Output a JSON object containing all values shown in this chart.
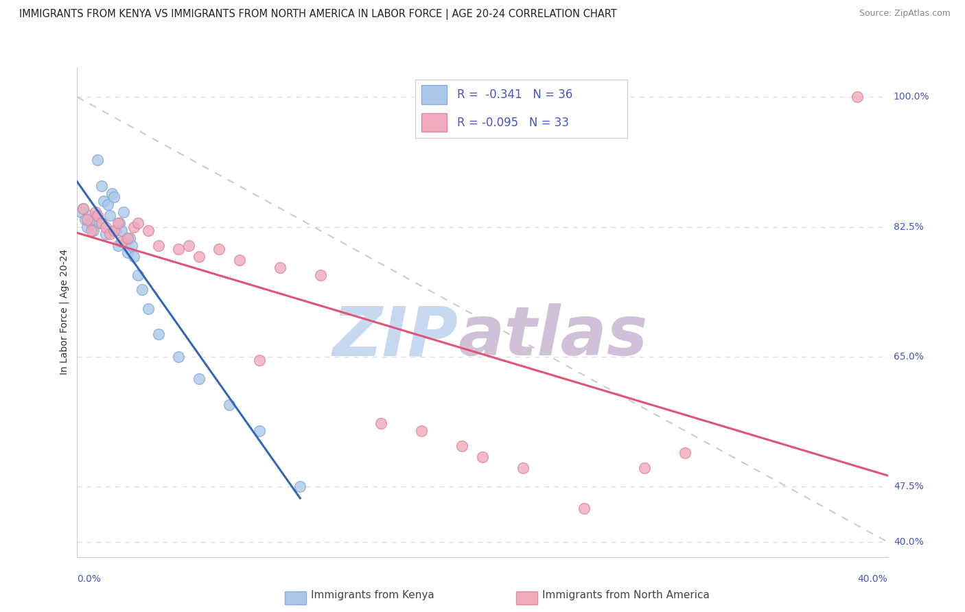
{
  "title": "IMMIGRANTS FROM KENYA VS IMMIGRANTS FROM NORTH AMERICA IN LABOR FORCE | AGE 20-24 CORRELATION CHART",
  "source": "Source: ZipAtlas.com",
  "xlabel_bottom_left": "0.0%",
  "xlabel_bottom_right": "40.0%",
  "ylabel": "In Labor Force | Age 20-24",
  "ylabel_color": "#333333",
  "y_tick_color": "#4455cc",
  "xlim": [
    0.0,
    40.0
  ],
  "ylim": [
    38.0,
    104.0
  ],
  "y_ticks": [
    40.0,
    47.5,
    65.0,
    82.5,
    100.0
  ],
  "kenya_R": -0.341,
  "kenya_N": 36,
  "kenya_color": "#aac8e8",
  "kenya_edge": "#88aadd",
  "kenya_line_color": "#3366bb",
  "northam_R": -0.095,
  "northam_N": 33,
  "northam_color": "#f0aabb",
  "northam_edge": "#dd8899",
  "northam_line_color": "#e05575",
  "legend_label_kenya": "Immigrants from Kenya",
  "legend_label_northam": "Immigrants from North America",
  "kenya_x": [
    0.2,
    0.3,
    0.4,
    0.5,
    0.6,
    0.7,
    0.8,
    0.9,
    1.0,
    1.1,
    1.2,
    1.3,
    1.4,
    1.5,
    1.6,
    1.7,
    1.8,
    1.9,
    2.0,
    2.1,
    2.2,
    2.3,
    2.4,
    2.5,
    2.6,
    2.7,
    2.8,
    3.0,
    3.2,
    3.5,
    4.0,
    5.0,
    6.0,
    7.5,
    9.0,
    11.0
  ],
  "kenya_y": [
    84.5,
    85.0,
    83.5,
    82.5,
    84.0,
    83.0,
    82.0,
    83.5,
    91.5,
    83.0,
    88.0,
    86.0,
    81.5,
    85.5,
    84.0,
    87.0,
    86.5,
    82.0,
    80.0,
    83.0,
    82.0,
    84.5,
    80.5,
    79.0,
    81.0,
    80.0,
    78.5,
    76.0,
    74.0,
    71.5,
    68.0,
    65.0,
    62.0,
    58.5,
    55.0,
    47.5
  ],
  "northam_x": [
    0.3,
    0.5,
    0.7,
    0.9,
    1.0,
    1.2,
    1.4,
    1.6,
    1.8,
    2.0,
    2.2,
    2.5,
    2.8,
    3.0,
    3.5,
    4.0,
    5.0,
    5.5,
    6.0,
    7.0,
    8.0,
    9.0,
    10.0,
    12.0,
    15.0,
    17.0,
    19.0,
    20.0,
    22.0,
    25.0,
    28.0,
    30.0,
    38.5
  ],
  "northam_y": [
    85.0,
    83.5,
    82.0,
    84.5,
    84.0,
    83.0,
    82.5,
    81.5,
    82.0,
    83.0,
    80.5,
    81.0,
    82.5,
    83.0,
    82.0,
    80.0,
    79.5,
    80.0,
    78.5,
    79.5,
    78.0,
    64.5,
    77.0,
    76.0,
    56.0,
    55.0,
    53.0,
    51.5,
    50.0,
    44.5,
    50.0,
    52.0,
    100.0
  ],
  "ref_line_x": [
    0.0,
    40.0
  ],
  "ref_line_y": [
    100.0,
    40.0
  ],
  "watermark_zip": "ZIP",
  "watermark_atlas": "atlas",
  "watermark_color_zip": "#c8d8f0",
  "watermark_color_atlas": "#d0c0d8",
  "watermark_fontsize": 72,
  "bg_color": "#ffffff",
  "grid_color": "#ddddee",
  "title_fontsize": 10.5,
  "source_fontsize": 9,
  "axis_label_fontsize": 10,
  "tick_fontsize": 10,
  "legend_fontsize": 11
}
